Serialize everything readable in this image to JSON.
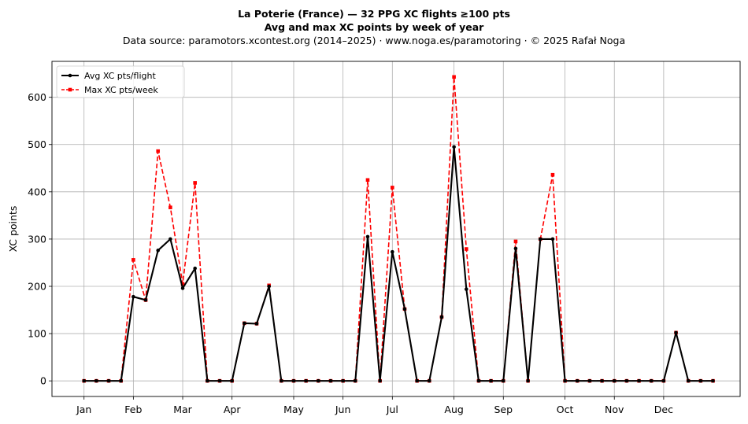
{
  "title": {
    "line1": "La Poterie (France)  —  32 PPG XC flights ≥100 pts",
    "line2": "Avg and max XC points by week of year",
    "line3": "Data source: paramotors.xcontest.org (2014–2025)  ·  www.noga.es/paramotoring  ·  © 2025 Rafał Noga"
  },
  "chart_data": {
    "type": "line",
    "title": "La Poterie (France)  —  32 PPG XC flights ≥100 pts",
    "subtitle": "Avg and max XC points by week of year",
    "xlabel": "",
    "ylabel": "XC points",
    "x_unit": "week of year",
    "xlim": [
      -1.6,
      54.2
    ],
    "ylim": [
      -33,
      676
    ],
    "grid": true,
    "legend_position": "top-left",
    "x_ticks": [
      {
        "label": "Jan",
        "week": 1
      },
      {
        "label": "Feb",
        "week": 5
      },
      {
        "label": "Mar",
        "week": 9
      },
      {
        "label": "Apr",
        "week": 13
      },
      {
        "label": "May",
        "week": 18
      },
      {
        "label": "Jun",
        "week": 22
      },
      {
        "label": "Jul",
        "week": 26
      },
      {
        "label": "Aug",
        "week": 31
      },
      {
        "label": "Sep",
        "week": 35
      },
      {
        "label": "Oct",
        "week": 40
      },
      {
        "label": "Nov",
        "week": 44
      },
      {
        "label": "Dec",
        "week": 48
      }
    ],
    "y_ticks": [
      0,
      100,
      200,
      300,
      400,
      500,
      600
    ],
    "x": [
      1,
      2,
      3,
      4,
      5,
      6,
      7,
      8,
      9,
      10,
      11,
      12,
      13,
      14,
      15,
      16,
      17,
      18,
      19,
      20,
      21,
      22,
      23,
      24,
      25,
      26,
      27,
      28,
      29,
      30,
      31,
      32,
      33,
      34,
      35,
      36,
      37,
      38,
      39,
      40,
      41,
      42,
      43,
      44,
      45,
      46,
      47,
      48,
      49,
      50,
      51,
      52
    ],
    "series": [
      {
        "name": "Avg XC pts/flight",
        "color": "#000000",
        "style": "solid",
        "marker": "circle",
        "values": [
          0,
          0,
          0,
          0,
          178,
          171,
          276,
          300,
          196,
          238,
          0,
          0,
          0,
          122,
          121,
          200,
          0,
          0,
          0,
          0,
          0,
          0,
          0,
          305,
          0,
          273,
          152,
          0,
          0,
          135,
          495,
          194,
          0,
          0,
          0,
          280,
          0,
          300,
          300,
          0,
          0,
          0,
          0,
          0,
          0,
          0,
          0,
          0,
          102,
          0,
          0,
          0
        ]
      },
      {
        "name": "Max XC pts/week",
        "color": "#ff0000",
        "style": "dashed",
        "marker": "square",
        "values": [
          0,
          0,
          0,
          0,
          256,
          171,
          486,
          367,
          205,
          419,
          0,
          0,
          0,
          122,
          121,
          202,
          0,
          0,
          0,
          0,
          0,
          0,
          0,
          425,
          0,
          409,
          152,
          0,
          0,
          135,
          643,
          279,
          0,
          0,
          0,
          295,
          0,
          300,
          436,
          0,
          0,
          0,
          0,
          0,
          0,
          0,
          0,
          0,
          102,
          0,
          0,
          0
        ]
      }
    ]
  }
}
